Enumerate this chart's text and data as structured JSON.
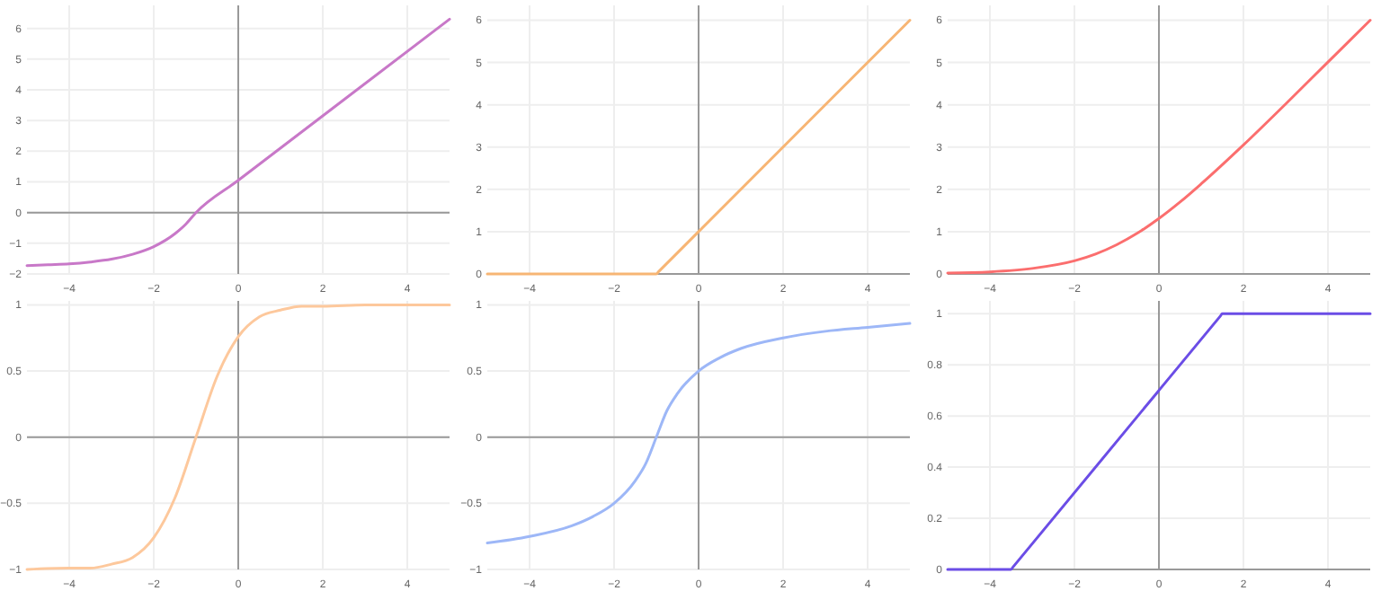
{
  "chart_data": [
    {
      "type": "line",
      "x": [
        -5,
        -4.5,
        -4,
        -3.5,
        -3,
        -2.5,
        -2,
        -1.5,
        -1.25,
        -1,
        0,
        5
      ],
      "series": [
        {
          "color": "#c878c8",
          "values": [
            -1.73,
            -1.7,
            -1.67,
            -1.61,
            -1.52,
            -1.36,
            -1.11,
            -0.69,
            -0.39,
            0,
            1.05,
            6.3
          ]
        }
      ],
      "xlim": [
        -5,
        5
      ],
      "xticks": [
        -4,
        -2,
        0,
        2,
        4
      ],
      "ylim": [
        -2,
        6.75
      ],
      "yticks": [
        -2,
        -1,
        0,
        1,
        2,
        3,
        4,
        5,
        6
      ],
      "grid": true
    },
    {
      "type": "line",
      "x": [
        -5,
        -1,
        -0.95,
        0,
        5
      ],
      "series": [
        {
          "color": "#f7b574",
          "values": [
            0,
            0,
            0.05,
            1,
            6
          ]
        }
      ],
      "xlim": [
        -5,
        5
      ],
      "xticks": [
        -4,
        -2,
        0,
        2,
        4
      ],
      "ylim": [
        0,
        6.35
      ],
      "yticks": [
        0,
        1,
        2,
        3,
        4,
        5,
        6
      ],
      "grid": true
    },
    {
      "type": "line",
      "x": [
        -5,
        -4,
        -3,
        -2,
        -1.5,
        -1,
        -0.5,
        0,
        0.5,
        1,
        2,
        3,
        4,
        5
      ],
      "series": [
        {
          "color": "#fb6e6e",
          "values": [
            0.02,
            0.05,
            0.13,
            0.31,
            0.47,
            0.69,
            0.97,
            1.31,
            1.7,
            2.13,
            3.05,
            4.02,
            5.01,
            6.0
          ]
        }
      ],
      "xlim": [
        -5,
        5
      ],
      "xticks": [
        -4,
        -2,
        0,
        2,
        4
      ],
      "ylim": [
        0,
        6.35
      ],
      "yticks": [
        0,
        1,
        2,
        3,
        4,
        5,
        6
      ],
      "grid": true
    },
    {
      "type": "line",
      "x": [
        -5,
        -4,
        -3.5,
        -3,
        -2.5,
        -2,
        -1.5,
        -1,
        -0.5,
        0,
        0.5,
        1,
        1.5,
        2,
        3,
        5
      ],
      "series": [
        {
          "color": "#fdc89c",
          "values": [
            -1,
            -0.99,
            -0.99,
            -0.96,
            -0.91,
            -0.76,
            -0.46,
            0,
            0.46,
            0.76,
            0.91,
            0.96,
            0.99,
            0.99,
            1,
            1
          ]
        }
      ],
      "xlim": [
        -5,
        5
      ],
      "xticks": [
        -4,
        -2,
        0,
        2,
        4
      ],
      "ylim": [
        -1,
        1.03
      ],
      "yticks": [
        -1,
        -0.5,
        0,
        0.5,
        1
      ],
      "grid": true
    },
    {
      "type": "line",
      "x": [
        -5,
        -4,
        -3,
        -2.5,
        -2,
        -1.5,
        -1.25,
        -1,
        -0.75,
        -0.5,
        0,
        0.5,
        1,
        2,
        3,
        4,
        5
      ],
      "series": [
        {
          "color": "#9db7f7",
          "values": [
            -0.8,
            -0.75,
            -0.67,
            -0.6,
            -0.5,
            -0.33,
            -0.2,
            0,
            0.2,
            0.33,
            0.5,
            0.6,
            0.67,
            0.75,
            0.8,
            0.83,
            0.86
          ]
        }
      ],
      "xlim": [
        -5,
        5
      ],
      "xticks": [
        -4,
        -2,
        0,
        2,
        4
      ],
      "ylim": [
        -1,
        1.03
      ],
      "yticks": [
        -1,
        -0.5,
        0,
        0.5,
        1
      ],
      "grid": true
    },
    {
      "type": "line",
      "x": [
        -5,
        -3.5,
        -3.45,
        0,
        1.45,
        1.5,
        5
      ],
      "series": [
        {
          "color": "#6b4de6",
          "values": [
            0,
            0,
            0.01,
            0.7,
            0.99,
            1,
            1
          ]
        }
      ],
      "xlim": [
        -5,
        5
      ],
      "xticks": [
        -4,
        -2,
        0,
        2,
        4
      ],
      "ylim": [
        0,
        1.05
      ],
      "yticks": [
        0,
        0.2,
        0.4,
        0.6,
        0.8,
        1
      ],
      "grid": true
    }
  ]
}
